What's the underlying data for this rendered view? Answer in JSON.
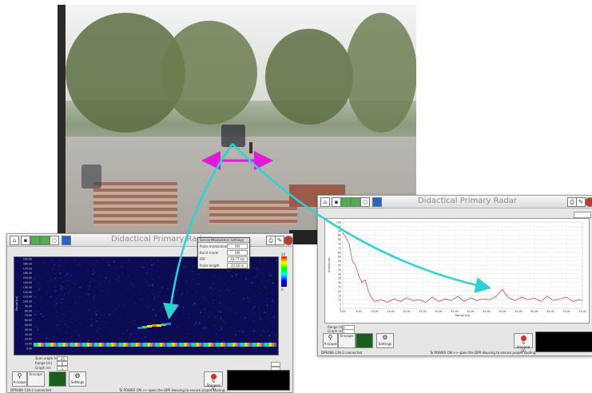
{
  "window_title": "Didactical Primary Radar",
  "settings_dialog": {
    "title": "Sensor/Modulation Settings",
    "rows": [
      {
        "label": "Pulse modulation",
        "value": "ON"
      },
      {
        "label": "Burst mode",
        "value": "ON"
      },
      {
        "label": "PRF",
        "value": "10.77 Hz"
      },
      {
        "label": "Pulse length",
        "value": "20.36 m"
      }
    ]
  },
  "buttons": {
    "a_scope": "A-scope",
    "b_scope": "B-scope",
    "settings": "Settings",
    "stop": "To Stopped (R)"
  },
  "status_left": "DPR486-136-2 connected",
  "status_right": "To POWER ON >> open the DPR Housing to ensure proper cooling",
  "right_chart": {
    "ylabel": "Amplitude",
    "xlabel": "Range [m]",
    "ytick_labels": [
      "100",
      "95",
      "90",
      "85",
      "80",
      "75",
      "70",
      "65",
      "60",
      "55",
      "50",
      "45",
      "40",
      "35",
      "30",
      "25",
      "20",
      "15",
      "10",
      "5",
      "0"
    ],
    "xtick_labels": [
      "0.00",
      "5.00",
      "10.00",
      "15.00",
      "20.00",
      "25.00",
      "30.00",
      "35.00",
      "40.00",
      "45.00",
      "50.00",
      "55.00",
      "60.00",
      "65.00",
      "70.00",
      "75.00"
    ],
    "line_color": "#d84c4c",
    "x": [
      0,
      1,
      2,
      3,
      4,
      5,
      6,
      7,
      8,
      9,
      10,
      12,
      14,
      16,
      18,
      20,
      22,
      24,
      26,
      28,
      30,
      32,
      34,
      36,
      38,
      40,
      42,
      44,
      46,
      48,
      49,
      50,
      51,
      52,
      54,
      56,
      58,
      60,
      62,
      64,
      66,
      68,
      70,
      72,
      74,
      75
    ],
    "y": [
      88,
      82,
      75,
      55,
      50,
      38,
      30,
      33,
      20,
      12,
      8,
      10,
      7,
      11,
      8,
      12,
      9,
      10,
      7,
      13,
      8,
      11,
      9,
      14,
      8,
      12,
      9,
      11,
      10,
      14,
      18,
      22,
      16,
      12,
      9,
      13,
      10,
      12,
      8,
      14,
      9,
      11,
      13,
      8,
      10,
      9
    ]
  },
  "left_chart": {
    "ylabel": "Range [m]",
    "ytick_labels": [
      "190.00",
      "180.00",
      "170.00",
      "160.00",
      "150.00",
      "140.00",
      "130.00",
      "120.00",
      "110.00",
      "100.00",
      "90.00",
      "80.00",
      "70.00",
      "60.00",
      "50.00",
      "40.00",
      "30.00",
      "20.00",
      "10.00",
      "0.00"
    ],
    "colorbar_top": "20",
    "colorbar_bottom": "0"
  },
  "left_controls": [
    {
      "label": "Scan angle from",
      "value": "-45"
    },
    {
      "label": "Range [m]",
      "value": "0"
    },
    {
      "label": "Graph res",
      "value": "1"
    }
  ],
  "right_controls": [
    {
      "label": "Range [m]",
      "value": "0"
    },
    {
      "label": "Graph res",
      "value": "1"
    }
  ],
  "colors": {
    "arrow_cyan": "#2ad3d6",
    "arrow_magenta": "#e01ad8"
  }
}
